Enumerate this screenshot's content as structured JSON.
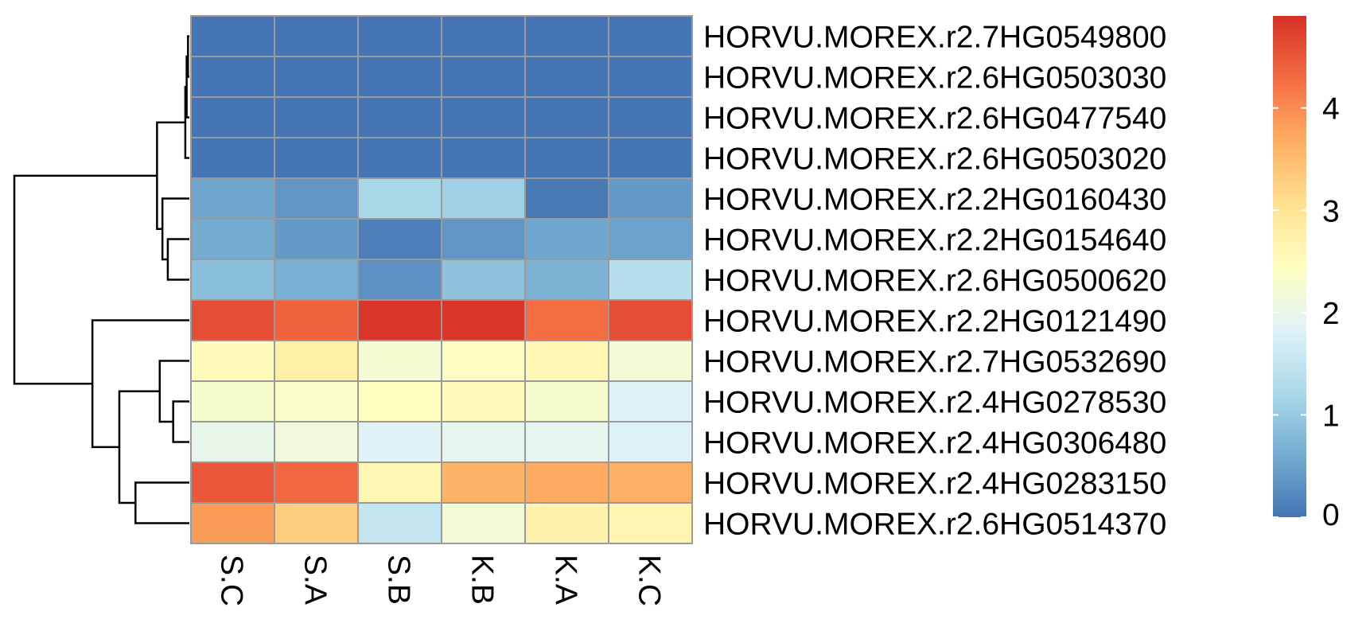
{
  "chart_data": {
    "type": "heatmap",
    "columns": [
      "S.C",
      "S.A",
      "S.B",
      "K.B",
      "K.A",
      "K.C"
    ],
    "rows": [
      "HORVU.MOREX.r2.7HG0549800",
      "HORVU.MOREX.r2.6HG0503030",
      "HORVU.MOREX.r2.6HG0477540",
      "HORVU.MOREX.r2.6HG0503020",
      "HORVU.MOREX.r2.2HG0160430",
      "HORVU.MOREX.r2.2HG0154640",
      "HORVU.MOREX.r2.6HG0500620",
      "HORVU.MOREX.r2.2HG0121490",
      "HORVU.MOREX.r2.7HG0532690",
      "HORVU.MOREX.r2.4HG0278530",
      "HORVU.MOREX.r2.4HG0306480",
      "HORVU.MOREX.r2.4HG0283150",
      "HORVU.MOREX.r2.6HG0514370"
    ],
    "values": [
      [
        0,
        0,
        0,
        0,
        0,
        0
      ],
      [
        0,
        0,
        0,
        0,
        0,
        0
      ],
      [
        0,
        0,
        0,
        0,
        0,
        0
      ],
      [
        0,
        0,
        0,
        0,
        0,
        0
      ],
      [
        0.55,
        0.35,
        1.2,
        1.1,
        0.05,
        0.4
      ],
      [
        0.6,
        0.4,
        0.1,
        0.35,
        0.55,
        0.5
      ],
      [
        0.85,
        0.65,
        0.3,
        0.9,
        0.7,
        1.35
      ],
      [
        4.6,
        4.4,
        4.85,
        4.85,
        4.3,
        4.6
      ],
      [
        2.5,
        2.75,
        2.25,
        2.4,
        2.6,
        2.2
      ],
      [
        2.3,
        2.35,
        2.45,
        2.5,
        2.3,
        1.8
      ],
      [
        2.0,
        2.15,
        1.85,
        1.95,
        1.95,
        1.8
      ],
      [
        4.5,
        4.35,
        2.6,
        3.6,
        3.7,
        3.65
      ],
      [
        3.85,
        3.3,
        1.5,
        2.2,
        2.7,
        2.65
      ]
    ],
    "color_scale": {
      "min": 0,
      "max": 4.9,
      "colors": [
        "#4575b4",
        "#74add1",
        "#abd9e9",
        "#e0f3f8",
        "#ffffbf",
        "#fee090",
        "#fdae61",
        "#f46d43",
        "#d73027"
      ],
      "ticks": [
        0,
        1,
        2,
        3,
        4
      ]
    },
    "row_dendrogram": {
      "merges": [
        [
          -1,
          -2,
          0.05
        ],
        [
          -3,
          1,
          0.1
        ],
        [
          -4,
          2,
          0.15
        ],
        [
          -6,
          -7,
          0.8
        ],
        [
          -5,
          4,
          1.0
        ],
        [
          3,
          5,
          1.2
        ],
        [
          -10,
          -11,
          0.6
        ],
        [
          -9,
          7,
          1.1
        ],
        [
          -12,
          -13,
          2.0
        ],
        [
          8,
          9,
          2.6
        ],
        [
          -8,
          10,
          3.6
        ],
        [
          6,
          11,
          6.5
        ]
      ]
    },
    "cell_border_color": "#9a9a9a"
  }
}
